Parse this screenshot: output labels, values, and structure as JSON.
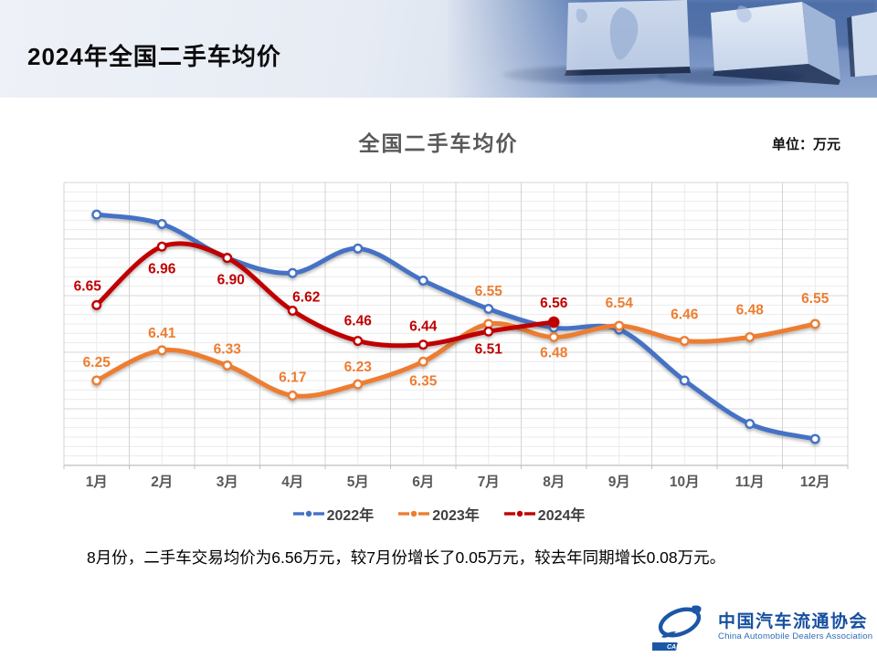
{
  "header": {
    "title": "2024年全国二手车均价"
  },
  "chart": {
    "title": "全国二手车均价",
    "unit_label": "单位：万元"
  },
  "summary_text": "8月份，二手车交易均价为6.56万元，较7月份增长了0.05万元，较去年同期增长0.08万元。",
  "footer_logo": {
    "org_cn": "中国汽车流通协会",
    "org_en": "China Automobile Dealers Association",
    "abbr": "CADA"
  },
  "chart_data": {
    "type": "line",
    "title": "全国二手车均价",
    "unit": "万元",
    "categories": [
      "1月",
      "2月",
      "3月",
      "4月",
      "5月",
      "6月",
      "7月",
      "8月",
      "9月",
      "10月",
      "11月",
      "12月"
    ],
    "series": [
      {
        "name": "2022年",
        "color": "#4472C4",
        "values": [
          7.13,
          7.08,
          6.9,
          6.82,
          6.95,
          6.78,
          6.63,
          6.53,
          6.52,
          6.25,
          6.02,
          5.94
        ],
        "labels_shown": false,
        "values_estimated_from_plot": true
      },
      {
        "name": "2023年",
        "color": "#ED7D31",
        "values": [
          6.25,
          6.41,
          6.33,
          6.17,
          6.23,
          6.35,
          6.55,
          6.48,
          6.54,
          6.46,
          6.48,
          6.55
        ],
        "labels_shown": true
      },
      {
        "name": "2024年",
        "color": "#C00000",
        "values": [
          6.65,
          6.96,
          6.9,
          6.62,
          6.46,
          6.44,
          6.51,
          6.56
        ],
        "labels_shown": true,
        "last_point_emphasized": true
      }
    ],
    "ylim": [
      5.8,
      7.3
    ],
    "y_minor_step": 0.05,
    "y_major_step": 0.3,
    "grid": true,
    "legend_position": "bottom"
  }
}
